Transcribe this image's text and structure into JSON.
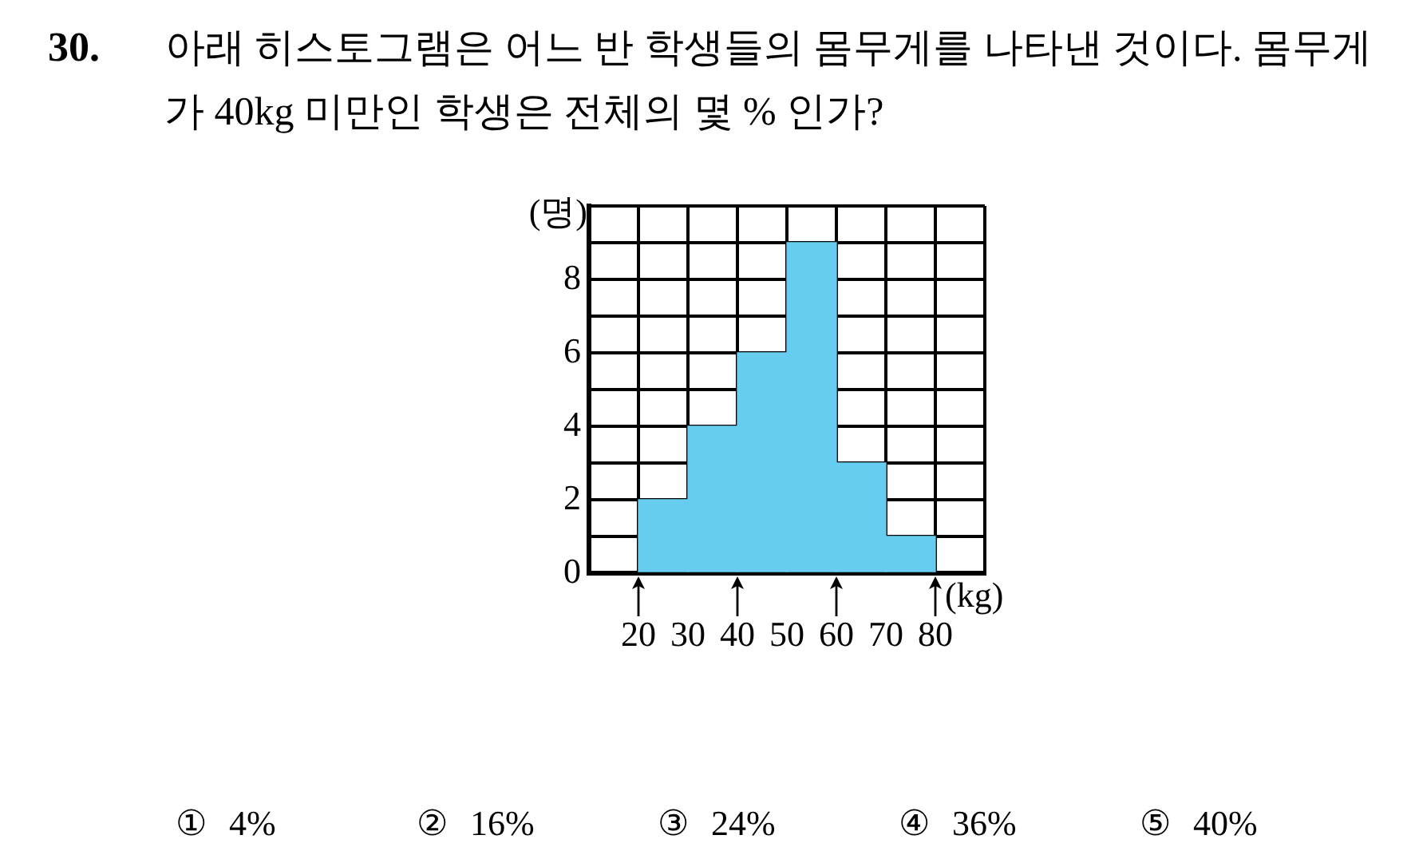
{
  "chart_data": {
    "type": "histogram",
    "title": "30. 아래 히스토그램은 어느 반 학생들의 몸무게를 나타낸 것이다. 몸무게가 40kg 미만인 학생은 전체의 몇 % 인가?",
    "xlabel": "(kg)",
    "ylabel": "(명)",
    "bins": [
      20,
      30,
      40,
      50,
      60,
      70,
      80
    ],
    "values": [
      2,
      4,
      6,
      9,
      3,
      1
    ],
    "color": "#66ccf0",
    "xlim": [
      10,
      90
    ],
    "ylim": [
      0,
      10
    ],
    "xticks": [
      {
        "value": 10,
        "label": null
      },
      20,
      30,
      40,
      50,
      60,
      70,
      80,
      {
        "value": 90,
        "label": null
      }
    ],
    "yticks": [
      0,
      {
        "value": 1,
        "label": null
      },
      2,
      {
        "value": 3,
        "label": null
      },
      4,
      {
        "value": 5,
        "label": null
      },
      6,
      {
        "value": 7,
        "label": null
      },
      8,
      {
        "value": 9,
        "label": null
      },
      {
        "value": 10,
        "label": null
      }
    ],
    "grid": true,
    "annotations": [
      "① 4%",
      "② 16%",
      "③ 24%",
      "④ 36%",
      "⑤ 40%"
    ]
  }
}
